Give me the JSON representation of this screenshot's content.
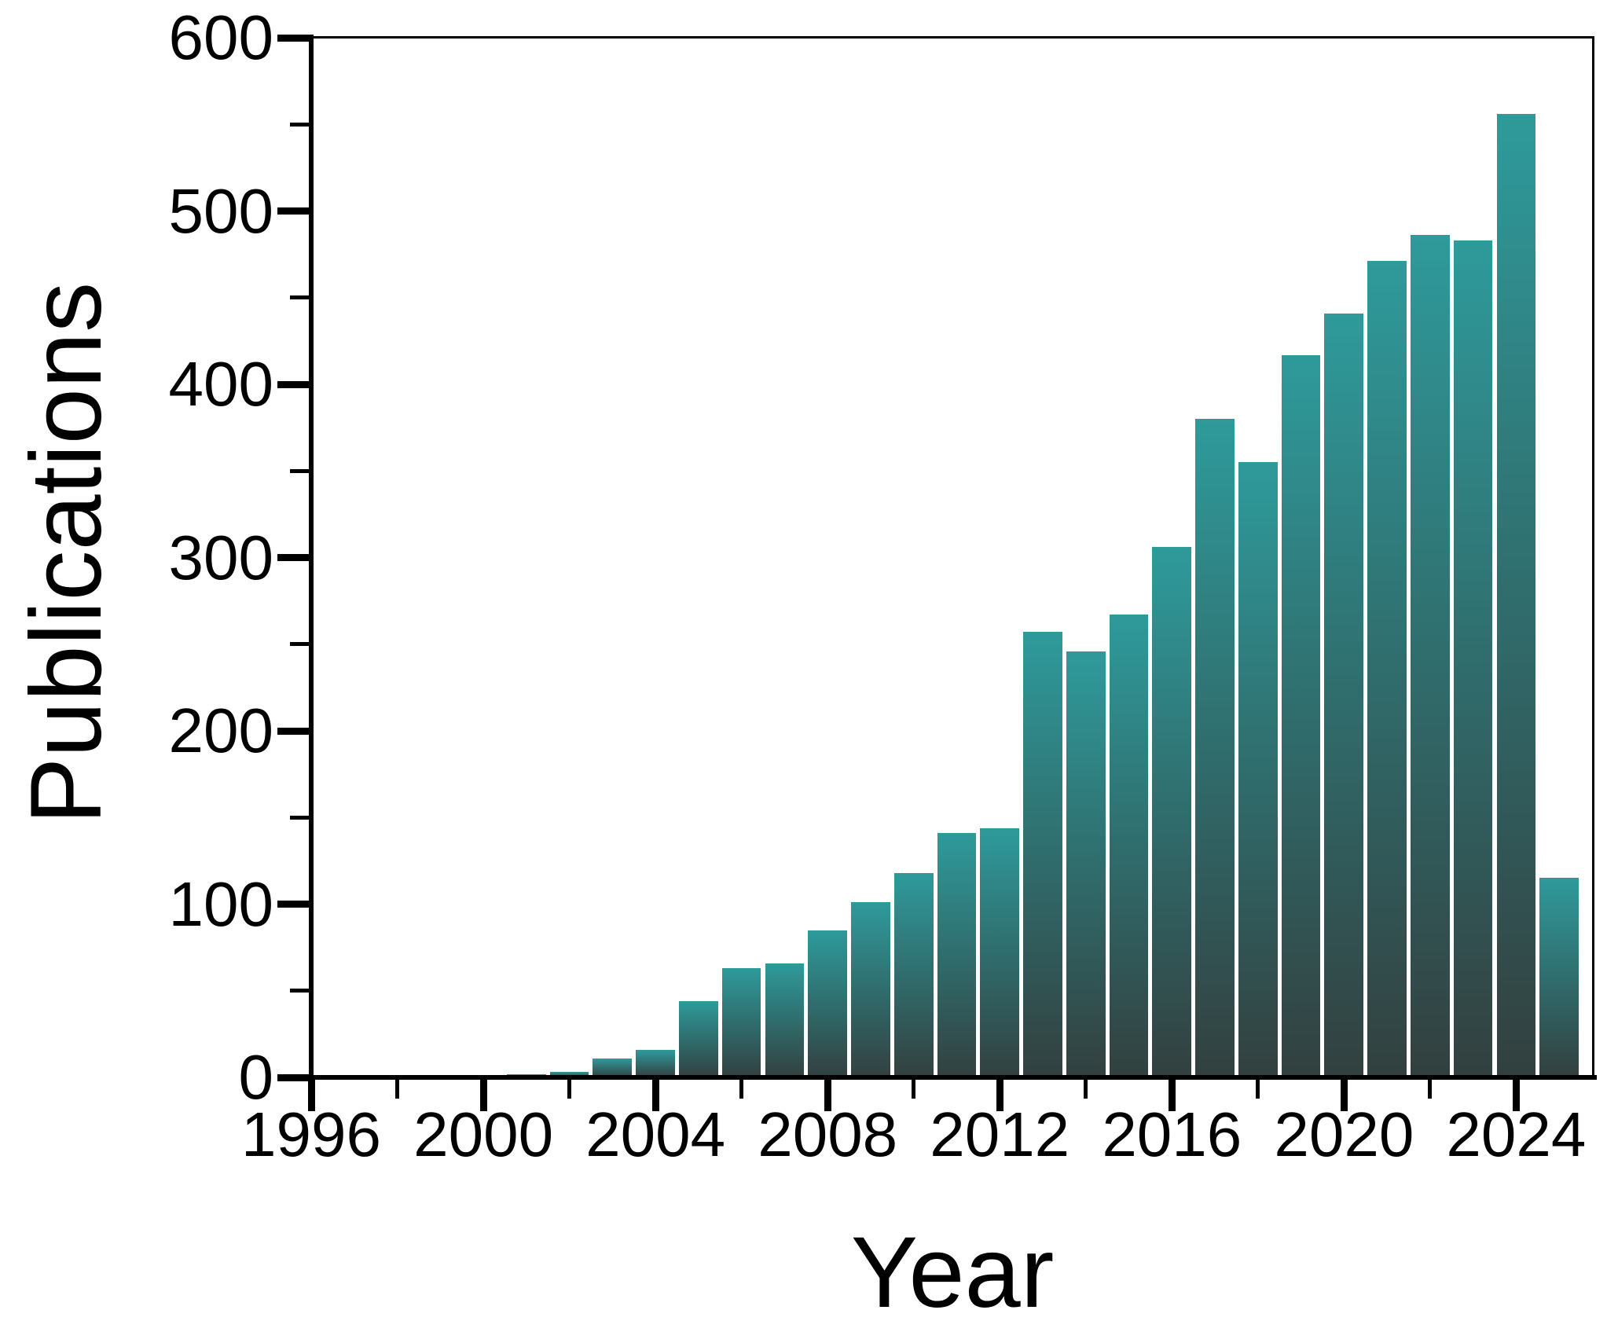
{
  "chart_data": {
    "type": "bar",
    "title": "",
    "xlabel": "Year",
    "ylabel": "Publications",
    "x": [
      1996,
      1997,
      1998,
      1999,
      2000,
      2001,
      2002,
      2003,
      2004,
      2005,
      2006,
      2007,
      2008,
      2009,
      2010,
      2011,
      2012,
      2013,
      2014,
      2015,
      2016,
      2017,
      2018,
      2019,
      2020,
      2021,
      2022,
      2023,
      2024,
      2025
    ],
    "values": [
      1,
      1,
      1,
      1,
      1,
      2,
      3,
      11,
      16,
      44,
      63,
      66,
      85,
      101,
      118,
      141,
      144,
      257,
      246,
      267,
      306,
      380,
      355,
      417,
      441,
      471,
      486,
      483,
      556,
      115
    ],
    "xlim": [
      1996,
      2025.8
    ],
    "ylim": [
      0,
      600
    ],
    "x_major_ticks": [
      1996,
      2000,
      2004,
      2008,
      2012,
      2016,
      2020,
      2024
    ],
    "x_minor_ticks": [
      1998,
      2002,
      2006,
      2010,
      2014,
      2018,
      2022
    ],
    "y_major_ticks": [
      0,
      100,
      200,
      300,
      400,
      500,
      600
    ],
    "y_minor_ticks": [
      50,
      150,
      250,
      350,
      450,
      550
    ],
    "bar_width_years": 0.91,
    "grid": false,
    "legend": null,
    "colors": {
      "bar_top": "#2f9a9b",
      "bar_bottom": "#32403f",
      "axis": "#000000",
      "background": "#ffffff"
    }
  }
}
